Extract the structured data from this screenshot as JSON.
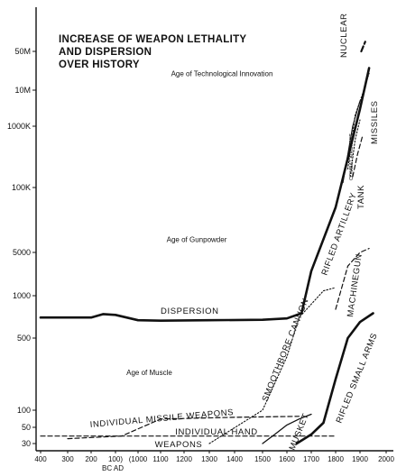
{
  "chart_data": {
    "type": "line",
    "title": "INCREASE OF WEAPON LETHALITY",
    "title_line2": "AND DISPERSION",
    "title_line3": "OVER HISTORY",
    "y_scale": "log",
    "y_tick_labels": [
      "50M",
      "10M",
      "1000K",
      "100K",
      "5000",
      "1000",
      "500",
      "100",
      "50",
      "30"
    ],
    "y_tick_values": [
      50000000,
      10000000,
      1000000,
      100000,
      5000,
      1000,
      500,
      100,
      50,
      30
    ],
    "x_tick_labels": [
      "400",
      "300",
      "200",
      "100)",
      "(1000",
      "1100",
      "1200",
      "1300",
      "1400",
      "1500",
      "1600",
      "1700",
      "1800",
      "1900",
      "2000"
    ],
    "x_tick_values": [
      -400,
      -300,
      -200,
      -100,
      1000,
      1100,
      1200,
      1300,
      1400,
      1500,
      1600,
      1700,
      1800,
      1900,
      2000
    ],
    "x_era_label": "BC AD",
    "ages": [
      {
        "label": "Age of Technological Innovation",
        "x": 1350,
        "y": 18000000
      },
      {
        "label": "Age of Gunpowder",
        "x": 1250,
        "y": 8000
      },
      {
        "label": "Age of Muscle",
        "x": 1050,
        "y": 220
      }
    ],
    "series": [
      {
        "name": "DISPERSION",
        "style": "solid-thick",
        "points": [
          [
            -400,
            700
          ],
          [
            -200,
            700
          ],
          [
            -150,
            740
          ],
          [
            -100,
            730
          ],
          [
            1000,
            670
          ],
          [
            1100,
            665
          ],
          [
            1300,
            670
          ],
          [
            1500,
            675
          ],
          [
            1600,
            690
          ],
          [
            1660,
            750
          ],
          [
            1700,
            2500
          ],
          [
            1800,
            40000
          ],
          [
            1900,
            3000000
          ],
          [
            1935,
            25000000
          ]
        ]
      },
      {
        "name": "NUCLEAR",
        "style": "dashed-thick",
        "points": [
          [
            1905,
            50000000
          ],
          [
            1920,
            70000000
          ]
        ]
      },
      {
        "name": "MISSILES",
        "style": "dotted",
        "points": [
          [
            1850,
            200000
          ],
          [
            1880,
            2000000
          ],
          [
            1910,
            8000000
          ],
          [
            1935,
            20000000
          ]
        ]
      },
      {
        "name": "COMBAT AIRCRAFT",
        "style": "dotted",
        "points": [
          [
            1860,
            150000
          ],
          [
            1880,
            600000
          ],
          [
            1900,
            1500000
          ]
        ]
      },
      {
        "name": "TANK",
        "style": "dashed",
        "points": [
          [
            1870,
            150000
          ],
          [
            1890,
            350000
          ],
          [
            1910,
            700000
          ]
        ]
      },
      {
        "name": "RIFLED ARTILLERY",
        "style": "thin",
        "points": [
          [
            1830,
            120000
          ],
          [
            1870,
            1000000
          ],
          [
            1900,
            5000000
          ]
        ]
      },
      {
        "name": "MACHINEGUN",
        "style": "dashed",
        "points": [
          [
            1800,
            800
          ],
          [
            1850,
            3000
          ],
          [
            1900,
            5000
          ],
          [
            1935,
            6000
          ]
        ]
      },
      {
        "name": "SMOOTHBORE CANNON",
        "style": "dotted",
        "points": [
          [
            1300,
            30
          ],
          [
            1500,
            100
          ],
          [
            1600,
            330
          ],
          [
            1650,
            700
          ],
          [
            1750,
            1200
          ],
          [
            1800,
            1350
          ]
        ]
      },
      {
        "name": "MUSKET",
        "style": "solid",
        "points": [
          [
            1500,
            30
          ],
          [
            1550,
            40
          ],
          [
            1600,
            55
          ],
          [
            1650,
            70
          ],
          [
            1700,
            85
          ]
        ]
      },
      {
        "name": "RIFLED SMALL ARMS",
        "style": "solid-thick",
        "points": [
          [
            1640,
            30
          ],
          [
            1700,
            40
          ],
          [
            1750,
            60
          ],
          [
            1800,
            200
          ],
          [
            1850,
            500
          ],
          [
            1900,
            650
          ],
          [
            1950,
            750
          ]
        ]
      },
      {
        "name": "INDIVIDUAL MISSILE WEAPONS",
        "style": "dashed",
        "points": [
          [
            -300,
            35
          ],
          [
            200,
            38
          ],
          [
            1100,
            70
          ],
          [
            1400,
            75
          ],
          [
            1650,
            78
          ]
        ]
      },
      {
        "name": "INDIVIDUAL HAND WEAPONS",
        "style": "dashed",
        "points": [
          [
            -400,
            38
          ],
          [
            300,
            38
          ],
          [
            1600,
            38
          ],
          [
            1800,
            38
          ]
        ]
      }
    ]
  }
}
